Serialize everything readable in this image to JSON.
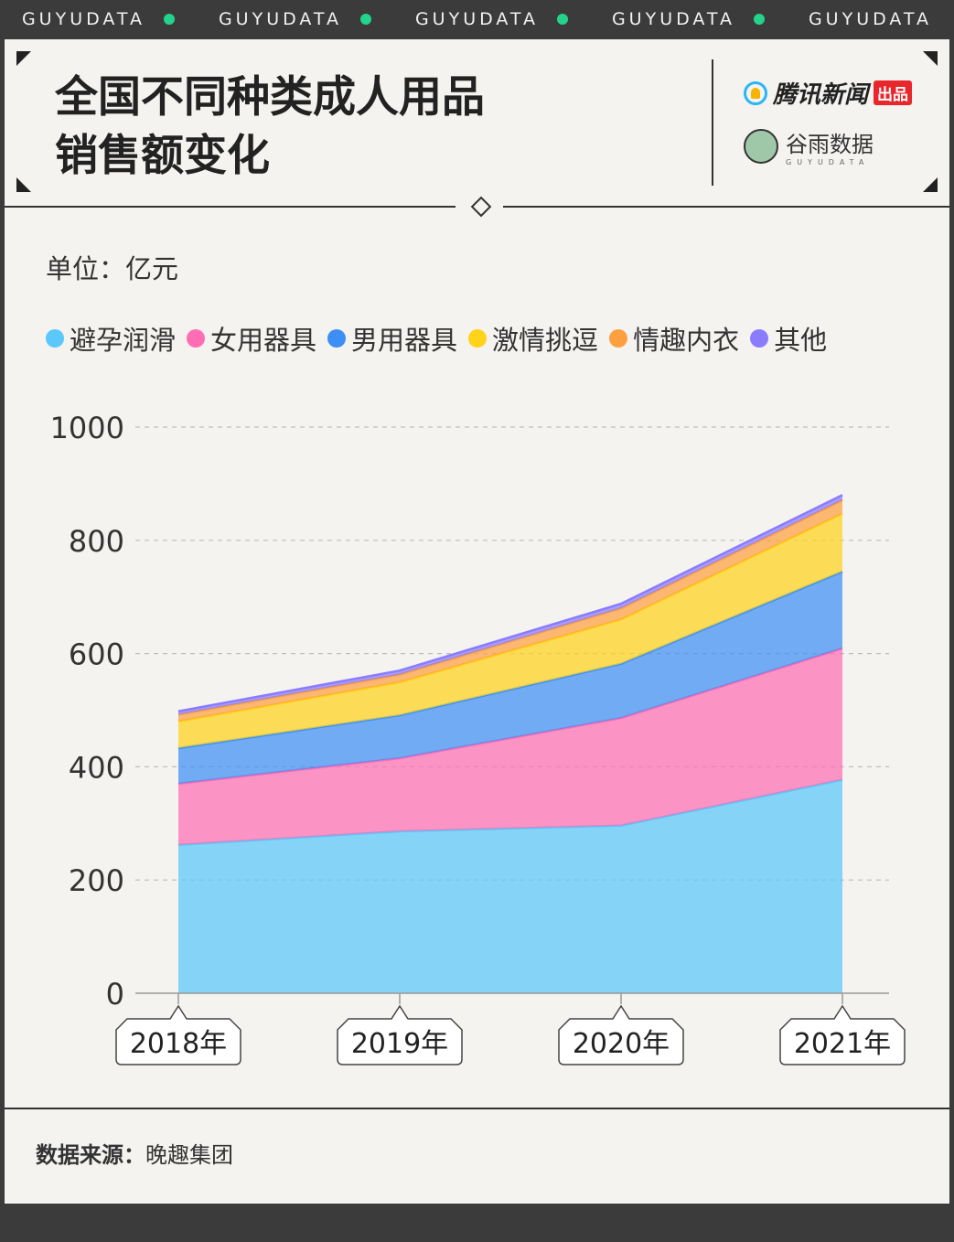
{
  "ticker": {
    "items": [
      "GUYUDATA",
      "GUYUDATA",
      "GUYUDATA",
      "GUYUDATA",
      "GUYUDATA"
    ]
  },
  "header": {
    "title_line1": "全国不同种类成人用品",
    "title_line2": "销售额变化",
    "brand_tencent": "腾讯新闻",
    "brand_tencent_tag": "出品",
    "brand_guyu": "谷雨数据",
    "brand_guyu_sub": "GUYUDATA"
  },
  "unit_label": "单位：亿元",
  "source_label": "数据来源：",
  "source_value": "晚趣集团",
  "chart_data": {
    "type": "area",
    "stacked": true,
    "categories": [
      "2018年",
      "2019年",
      "2020年",
      "2021年"
    ],
    "ylim": [
      0,
      1000
    ],
    "yticks": [
      0,
      200,
      400,
      600,
      800,
      1000
    ],
    "grid": true,
    "legend_position": "top",
    "series": [
      {
        "name": "避孕润滑",
        "color": "#5ac8fa",
        "values": [
          262,
          286,
          296,
          377
        ]
      },
      {
        "name": "女用器具",
        "color": "#ff6eb4",
        "values": [
          108,
          129,
          190,
          232
        ]
      },
      {
        "name": "男用器具",
        "color": "#3d8ff5",
        "values": [
          63,
          76,
          96,
          136
        ]
      },
      {
        "name": "激情挑逗",
        "color": "#ffd31a",
        "values": [
          47,
          58,
          78,
          102
        ]
      },
      {
        "name": "情趣内衣",
        "color": "#ffa040",
        "values": [
          12,
          14,
          20,
          24
        ]
      },
      {
        "name": "其他",
        "color": "#8a7cff",
        "values": [
          6,
          7,
          8,
          9
        ]
      }
    ]
  }
}
